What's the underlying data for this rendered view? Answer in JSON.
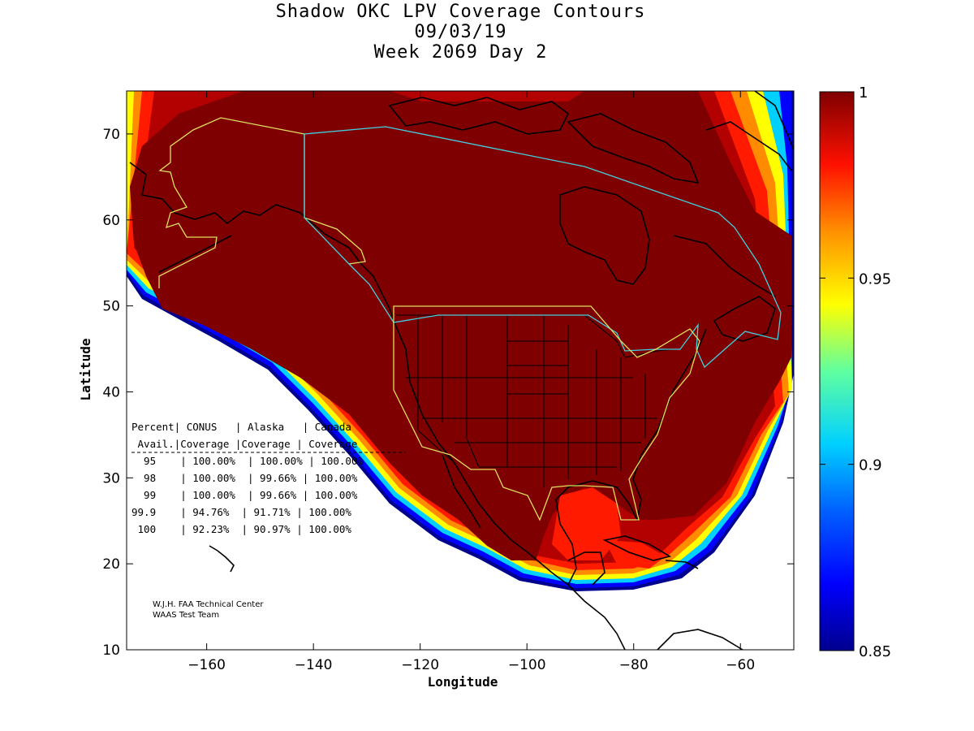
{
  "title": {
    "line1": "Shadow OKC LPV Coverage Contours",
    "line2": "09/03/19",
    "line3": "Week 2069 Day 2"
  },
  "chart_data": {
    "type": "heatmap",
    "xlabel": "Longitude",
    "ylabel": "Latitude",
    "xlim": [
      -175,
      -50
    ],
    "ylim": [
      10,
      75
    ],
    "x_ticks": [
      -160,
      -140,
      -120,
      -100,
      -80,
      -60
    ],
    "y_ticks": [
      10,
      20,
      30,
      40,
      50,
      60,
      70
    ],
    "colorbar": {
      "min": 0.85,
      "max": 1,
      "ticks": [
        0.85,
        0.9,
        0.95,
        1
      ],
      "tick_labels": [
        "0.85",
        "0.9",
        "0.95",
        "1"
      ]
    }
  },
  "table": {
    "header1": "Percent| CONUS   | Alaska   | Canada",
    "header2": " Avail.|Coverage |Coverage | Coverage",
    "rows": [
      "  95    | 100.00%  | 100.00% | 100.00%",
      "  98    | 100.00%  | 99.66% | 100.00%",
      "  99    | 100.00%  | 99.66% | 100.00%",
      "99.9    | 94.76%  | 91.71% | 100.00%",
      " 100    | 92.23%  | 90.97% | 100.00%"
    ]
  },
  "credit": {
    "line1": "W.J.H. FAA Technical Center",
    "line2": "WAAS Test Team"
  },
  "colors": {
    "max": "#7f0000",
    "high": "#b30000",
    "red": "#ff1a00",
    "orange": "#ff8c00",
    "yellow": "#ffff00",
    "cyan": "#00e0ff",
    "blue": "#0032ff",
    "navy": "#00008f",
    "border_alaska": "#e0e060",
    "border_canada": "#40d0e0"
  }
}
